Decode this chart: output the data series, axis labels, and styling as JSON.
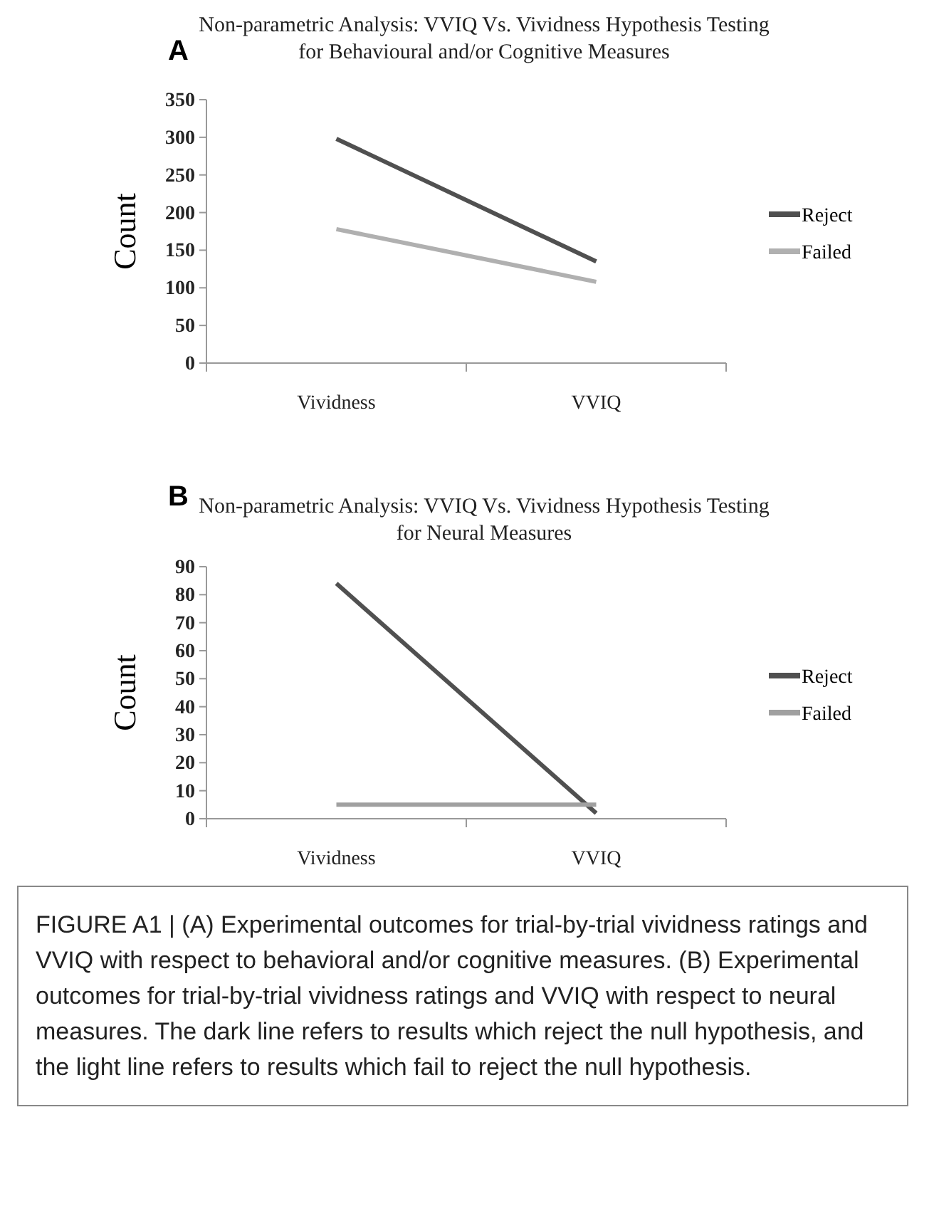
{
  "chart_data": [
    {
      "type": "line",
      "title": "Non-parametric Analysis: VVIQ Vs. Vividness Hypothesis Testing for Behavioural and/or Cognitive Measures",
      "ylabel": "Count",
      "categories": [
        "Vividness",
        "VVIQ"
      ],
      "series": [
        {
          "name": "Reject",
          "color": "#505050",
          "values": [
            298,
            135
          ]
        },
        {
          "name": "Failed",
          "color": "#b0b0b0",
          "values": [
            178,
            108
          ]
        }
      ],
      "ylim": [
        0,
        350
      ],
      "yticks": [
        0,
        50,
        100,
        150,
        200,
        250,
        300,
        350
      ],
      "grid": false,
      "legend": "right",
      "marker": "none",
      "line_style": "solid",
      "annotations": [
        "A"
      ]
    },
    {
      "type": "line",
      "title": "Non-parametric Analysis: VVIQ Vs. Vividness Hypothesis Testing for Neural Measures",
      "ylabel": "Count",
      "categories": [
        "Vividness",
        "VVIQ"
      ],
      "series": [
        {
          "name": "Reject",
          "color": "#505050",
          "values": [
            84,
            2
          ]
        },
        {
          "name": "Failed",
          "color": "#a0a0a0",
          "values": [
            5,
            5
          ]
        }
      ],
      "ylim": [
        0,
        90
      ],
      "yticks": [
        0,
        10,
        20,
        30,
        40,
        50,
        60,
        70,
        80,
        90
      ],
      "grid": false,
      "legend": "right",
      "marker": "none",
      "line_style": "solid",
      "annotations": [
        "B",
        "FIGURE A1 | (A) Experimental outcomes for trial-by-trial vividness ratings and VVIQ with respect to behavioral and/or cognitive measures. (B) Experimental outcomes for trial-by-trial vividness ratings and VVIQ with respect to neural measures. The dark line refers to results which reject the null hypothesis, and the light line refers to results which fail to reject the null hypothesis."
      ]
    }
  ]
}
